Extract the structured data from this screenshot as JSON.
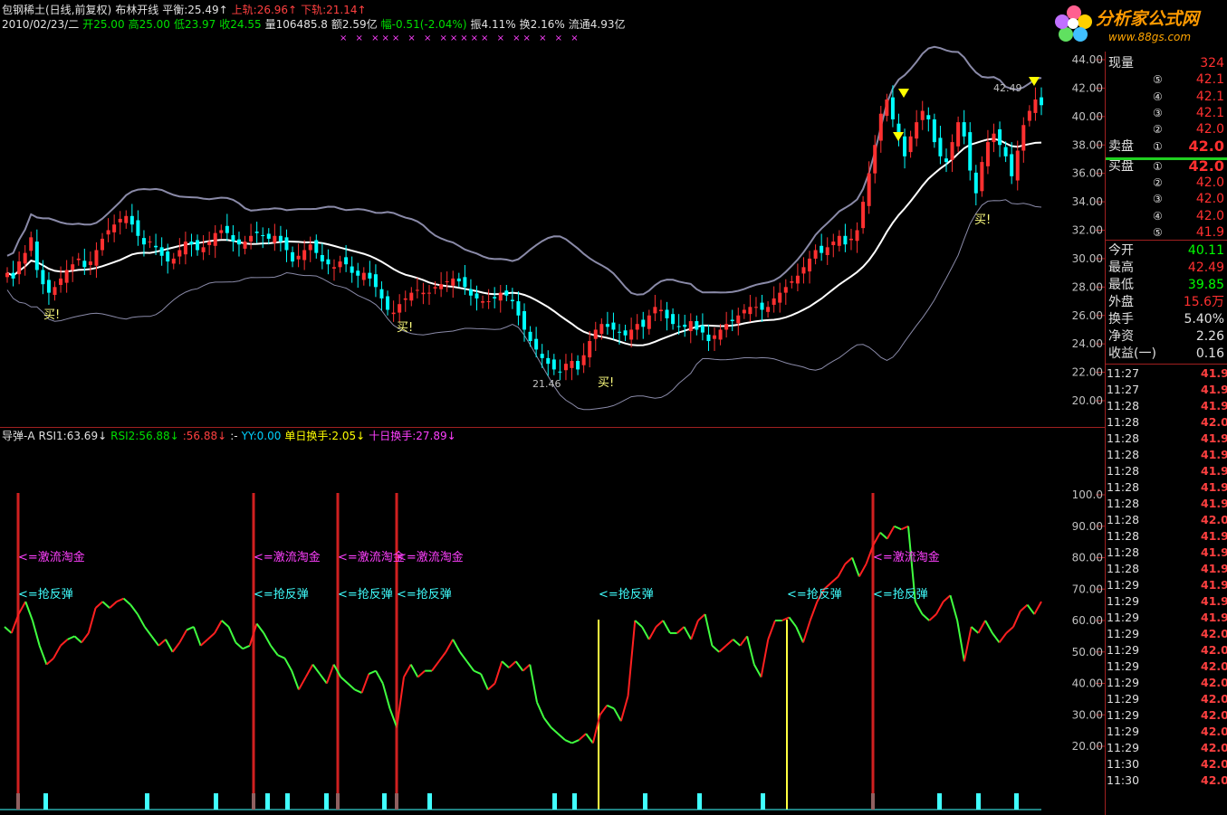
{
  "header": {
    "line1": [
      {
        "t": "包钢稀土(日线,前复权)",
        "c": "w"
      },
      {
        "t": "布林开线",
        "c": "w"
      },
      {
        "t": "平衡:25.49↑",
        "c": "w"
      },
      {
        "t": "上轨:26.96↑",
        "c": "r"
      },
      {
        "t": "下轨:21.14↑",
        "c": "r"
      }
    ],
    "line2": [
      {
        "t": "2010/02/23/二",
        "c": "w"
      },
      {
        "t": "开25.00",
        "c": "g"
      },
      {
        "t": "高25.00",
        "c": "g"
      },
      {
        "t": "低23.97",
        "c": "g"
      },
      {
        "t": "收24.55",
        "c": "g"
      },
      {
        "t": "量106485.8",
        "c": "w"
      },
      {
        "t": "额2.59亿",
        "c": "w"
      },
      {
        "t": "幅-0.51(-2.04%)",
        "c": "g"
      },
      {
        "t": "振4.11%",
        "c": "w"
      },
      {
        "t": "换2.16%",
        "c": "w"
      },
      {
        "t": "流通4.93亿",
        "c": "w"
      }
    ]
  },
  "markers_line": "× × ××× × × ××××× × ×× × × ×",
  "logo": {
    "title": "分析家公式网",
    "url": "www.88gs.com"
  },
  "main_chart": {
    "y_ticks": [
      "44.00",
      "42.00",
      "40.00",
      "38.00",
      "36.00",
      "34.00",
      "32.00",
      "30.00",
      "28.00",
      "26.00",
      "24.00",
      "22.00",
      "20.00"
    ],
    "annotations": [
      "买!",
      "买!",
      "买!",
      "买!",
      "21.46",
      "42.49"
    ],
    "colors": {
      "up": "#ff3030",
      "down": "#00ffff",
      "mid": "#ffffff",
      "band": "#9090b0"
    }
  },
  "indicator": {
    "title_parts": [
      {
        "t": "导弹-A",
        "c": "w"
      },
      {
        "t": "RSI1:63.69↓",
        "c": "w"
      },
      {
        "t": "RSI2:56.88↓",
        "c": "g"
      },
      {
        "t": ":56.88↓",
        "c": "r"
      },
      {
        "t": ":-",
        "c": "w"
      },
      {
        "t": "YY:0.00",
        "c": "c"
      },
      {
        "t": "单日换手:2.05↓",
        "c": "y"
      },
      {
        "t": "十日换手:27.89↓",
        "c": "m"
      }
    ],
    "y_ticks": [
      "100.0",
      "90.00",
      "80.00",
      "70.00",
      "60.00",
      "50.00",
      "40.00",
      "30.00",
      "20.00"
    ],
    "label_ji": "<=激流淘金",
    "label_qiang": "<=抢反弹"
  },
  "right_panel": {
    "top": [
      {
        "l": "现量",
        "v": "324",
        "vc": "#ff3030",
        "n": ""
      },
      {
        "l": "",
        "n": "⑤",
        "v": "42.1",
        "vc": "#ff3030"
      },
      {
        "l": "",
        "n": "④",
        "v": "42.1",
        "vc": "#ff3030"
      },
      {
        "l": "",
        "n": "③",
        "v": "42.1",
        "vc": "#ff3030"
      },
      {
        "l": "",
        "n": "②",
        "v": "42.0",
        "vc": "#ff3030"
      },
      {
        "l": "卖盘",
        "n": "①",
        "v": "42.0",
        "vc": "#ff3030"
      },
      {
        "l": "买盘",
        "n": "①",
        "v": "42.0",
        "vc": "#ff3030"
      },
      {
        "l": "",
        "n": "②",
        "v": "42.0",
        "vc": "#ff3030"
      },
      {
        "l": "",
        "n": "③",
        "v": "42.0",
        "vc": "#ff3030"
      },
      {
        "l": "",
        "n": "④",
        "v": "42.0",
        "vc": "#ff3030"
      },
      {
        "l": "",
        "n": "⑤",
        "v": "41.9",
        "vc": "#ff3030"
      }
    ],
    "stats": [
      {
        "l": "今开",
        "v": "40.11",
        "vc": "#00ff00"
      },
      {
        "l": "最高",
        "v": "42.49",
        "vc": "#ff3030"
      },
      {
        "l": "最低",
        "v": "39.85",
        "vc": "#00ff00"
      },
      {
        "l": "外盘",
        "v": "15.6万",
        "vc": "#ff3030"
      },
      {
        "l": "换手",
        "v": "5.40%",
        "vc": "#e0e0e0"
      },
      {
        "l": "净资",
        "v": "2.26",
        "vc": "#e0e0e0"
      },
      {
        "l": "收益(一)",
        "v": "0.16",
        "vc": "#e0e0e0"
      }
    ],
    "ticks": [
      {
        "t": "11:27",
        "p": "41.9"
      },
      {
        "t": "11:27",
        "p": "41.9"
      },
      {
        "t": "11:28",
        "p": "41.9"
      },
      {
        "t": "11:28",
        "p": "42.0"
      },
      {
        "t": "11:28",
        "p": "41.9"
      },
      {
        "t": "11:28",
        "p": "41.9"
      },
      {
        "t": "11:28",
        "p": "41.9"
      },
      {
        "t": "11:28",
        "p": "41.9"
      },
      {
        "t": "11:28",
        "p": "41.9"
      },
      {
        "t": "11:28",
        "p": "42.0"
      },
      {
        "t": "11:28",
        "p": "41.9"
      },
      {
        "t": "11:28",
        "p": "41.9"
      },
      {
        "t": "11:28",
        "p": "41.9"
      },
      {
        "t": "11:29",
        "p": "41.9"
      },
      {
        "t": "11:29",
        "p": "41.9"
      },
      {
        "t": "11:29",
        "p": "41.9"
      },
      {
        "t": "11:29",
        "p": "42.0"
      },
      {
        "t": "11:29",
        "p": "42.0"
      },
      {
        "t": "11:29",
        "p": "42.0"
      },
      {
        "t": "11:29",
        "p": "42.0"
      },
      {
        "t": "11:29",
        "p": "42.0"
      },
      {
        "t": "11:29",
        "p": "42.0"
      },
      {
        "t": "11:29",
        "p": "42.0"
      },
      {
        "t": "11:29",
        "p": "42.0"
      },
      {
        "t": "11:30",
        "p": "42.0"
      },
      {
        "t": "11:30",
        "p": "42.0"
      }
    ]
  },
  "chart_data": {
    "type": "candlestick",
    "price_axis": [
      20,
      44
    ],
    "closes": [
      29.0,
      28.6,
      29.8,
      30.4,
      31.5,
      29.2,
      28.2,
      27.6,
      28.0,
      28.6,
      29.2,
      29.6,
      30.0,
      29.4,
      29.8,
      30.6,
      31.4,
      32.0,
      32.4,
      32.8,
      33.0,
      32.4,
      31.6,
      31.0,
      31.2,
      30.8,
      30.2,
      29.8,
      30.0,
      30.6,
      31.2,
      31.0,
      30.6,
      30.8,
      31.2,
      31.8,
      32.0,
      31.8,
      31.2,
      31.0,
      31.2,
      31.6,
      31.8,
      31.6,
      31.4,
      31.6,
      31.2,
      30.6,
      29.8,
      30.2,
      30.6,
      31.0,
      30.4,
      29.8,
      29.6,
      29.4,
      29.8,
      29.6,
      29.0,
      28.8,
      29.0,
      28.6,
      28.0,
      27.2,
      26.4,
      26.2,
      26.8,
      27.2,
      27.6,
      27.8,
      27.6,
      27.6,
      28.0,
      28.2,
      28.4,
      28.6,
      28.4,
      28.0,
      27.4,
      27.2,
      27.0,
      27.0,
      27.2,
      27.6,
      27.4,
      27.0,
      26.0,
      25.0,
      24.2,
      23.6,
      23.0,
      22.6,
      22.2,
      22.0,
      22.6,
      22.8,
      22.2,
      23.2,
      24.2,
      25.0,
      25.4,
      25.2,
      25.0,
      24.8,
      24.6,
      25.0,
      25.4,
      25.2,
      26.0,
      26.6,
      26.4,
      25.8,
      25.4,
      25.2,
      25.2,
      25.6,
      25.0,
      24.8,
      24.2,
      24.6,
      25.0,
      25.4,
      25.6,
      26.0,
      26.4,
      26.6,
      26.6,
      26.4,
      26.6,
      27.2,
      27.6,
      28.0,
      28.4,
      28.8,
      29.4,
      30.0,
      30.6,
      30.4,
      30.8,
      31.2,
      31.6,
      31.0,
      31.4,
      32.0,
      34.0,
      36.0,
      38.0,
      40.2,
      41.2,
      39.8,
      38.6,
      37.2,
      38.6,
      39.6,
      40.4,
      39.8,
      38.2,
      37.2,
      36.8,
      38.2,
      39.6,
      38.6,
      36.2,
      34.6,
      36.8,
      38.2,
      38.8,
      38.0,
      37.2,
      35.8,
      37.6,
      39.4,
      40.4,
      41.2,
      40.8
    ],
    "rsi": [
      58,
      56,
      62,
      66,
      60,
      52,
      46,
      48,
      52,
      54,
      55,
      53,
      56,
      64,
      66,
      64,
      66,
      67,
      65,
      62,
      58,
      55,
      52,
      54,
      50,
      53,
      57,
      58,
      52,
      54,
      56,
      60,
      58,
      53,
      51,
      52,
      59,
      56,
      52,
      49,
      48,
      44,
      38,
      42,
      46,
      43,
      40,
      46,
      42,
      40,
      38,
      37,
      43,
      44,
      40,
      32,
      26,
      42,
      46,
      42,
      44,
      44,
      47,
      50,
      54,
      50,
      47,
      44,
      43,
      38,
      40,
      47,
      45,
      47,
      44,
      46,
      34,
      29,
      26,
      24,
      22,
      21,
      22,
      24,
      21,
      30,
      33,
      32,
      28,
      36,
      60,
      58,
      54,
      58,
      60,
      56,
      56,
      58,
      54,
      60,
      62,
      52,
      50,
      52,
      54,
      52,
      55,
      46,
      42,
      54,
      60,
      60,
      61,
      58,
      53,
      60,
      66,
      70,
      72,
      74,
      78,
      80,
      74,
      78,
      84,
      88,
      86,
      90,
      89,
      90,
      66,
      62,
      60,
      62,
      66,
      68,
      60,
      47,
      58,
      56,
      60,
      56,
      53,
      56,
      58,
      63,
      65,
      62,
      66
    ],
    "signals_red": [
      20,
      280,
      373,
      438,
      964
    ],
    "signals_yellow": [
      661,
      869
    ]
  }
}
